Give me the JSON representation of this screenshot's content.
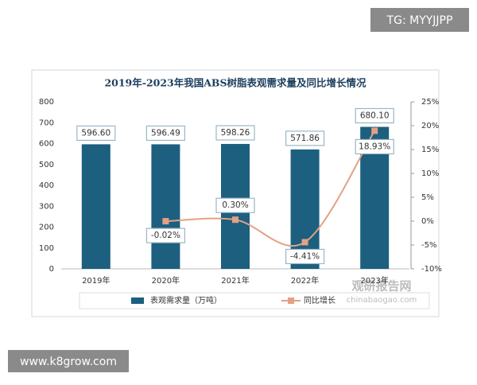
{
  "chart_data": {
    "type": "combo",
    "title": "2019年-2023年我国ABS树脂表观需求量及同比增长情况",
    "categories": [
      "2019年",
      "2020年",
      "2021年",
      "2022年",
      "2023年"
    ],
    "series": [
      {
        "name": "表观需求量（万吨）",
        "type": "bar",
        "color": "#1c5f7f",
        "values": [
          596.6,
          596.49,
          598.26,
          571.86,
          680.1
        ],
        "value_labels": [
          "596.60",
          "596.49",
          "598.26",
          "571.86",
          "680.10"
        ]
      },
      {
        "name": "同比增长",
        "type": "line",
        "axis": "y2",
        "color": "#e2a184",
        "values": [
          null,
          -0.02,
          0.3,
          -4.41,
          18.93
        ],
        "value_labels": [
          null,
          "-0.02%",
          "0.30%",
          "-4.41%",
          "18.93%"
        ]
      }
    ],
    "ylim": [
      0,
      800
    ],
    "yticks": [
      0,
      100,
      200,
      300,
      400,
      500,
      600,
      700,
      800
    ],
    "y2lim": [
      -10,
      25
    ],
    "y2ticks": [
      {
        "value": -10,
        "label": "-10%"
      },
      {
        "value": -5,
        "label": "-5%"
      },
      {
        "value": 0,
        "label": "0%"
      },
      {
        "value": 5,
        "label": "5%"
      },
      {
        "value": 10,
        "label": "10%"
      },
      {
        "value": 15,
        "label": "15%"
      },
      {
        "value": 20,
        "label": "20%"
      },
      {
        "value": 25,
        "label": "25%"
      }
    ]
  },
  "watermarks": {
    "top": "TG: MYYJJPP",
    "bottom": "www.k8grow.com",
    "brand": "观研报告网",
    "site": "chinabaogao.com"
  }
}
